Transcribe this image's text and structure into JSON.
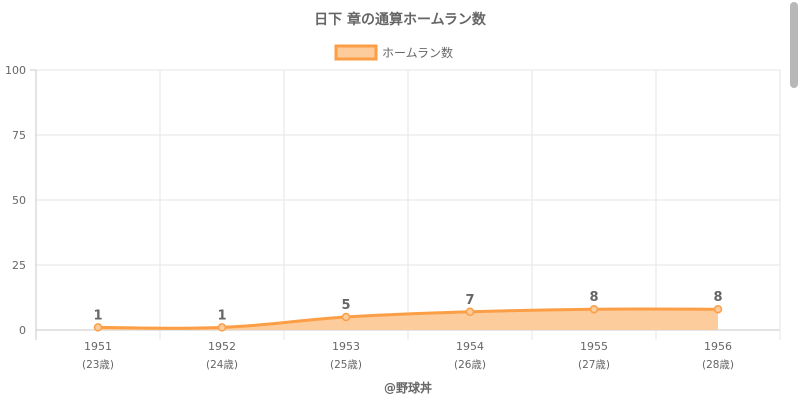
{
  "chart_data": {
    "type": "area",
    "title": "日下 章の通算ホームラン数",
    "legend_position": "top",
    "categories": [
      "1951",
      "1952",
      "1953",
      "1954",
      "1955",
      "1956"
    ],
    "sub_labels": [
      "(23歳)",
      "(24歳)",
      "(25歳)",
      "(26歳)",
      "(27歳)",
      "(28歳)"
    ],
    "series": [
      {
        "name": "ホームラン数",
        "values": [
          1,
          1,
          5,
          7,
          8,
          8
        ]
      }
    ],
    "y_ticks": [
      "0",
      "25",
      "50",
      "75",
      "100"
    ],
    "ylim": [
      0,
      100
    ],
    "grid": true,
    "colors": {
      "line": "#fb9e46",
      "fill": "#fdcc9c",
      "grid": "#e6e6e6",
      "axis": "#c8c8c8"
    }
  },
  "credit": "@野球丼"
}
